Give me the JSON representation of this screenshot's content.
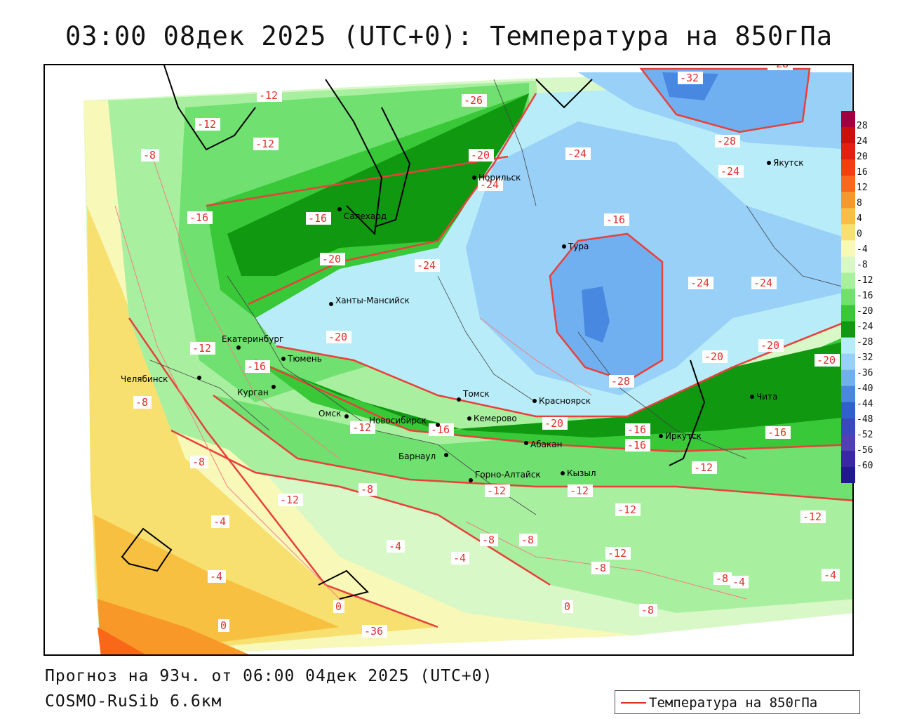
{
  "header": {
    "title": "03:00 08дек 2025 (UTC+0): Температура на 850гПа"
  },
  "footer": {
    "forecast": "Прогноз на 93ч. от 06:00 04дек 2025 (UTC+0)",
    "model": "COSMO-RuSib 6.6км"
  },
  "legend": {
    "label": "Температура на 850гПа",
    "line_color": "#e0302a"
  },
  "colorbar": {
    "ticks": [
      "28",
      "24",
      "20",
      "16",
      "12",
      "8",
      "4",
      "0",
      "-4",
      "-8",
      "-12",
      "-16",
      "-20",
      "-24",
      "-28",
      "-32",
      "-36",
      "-40",
      "-44",
      "-48",
      "-52",
      "-56",
      "-60"
    ],
    "colors": [
      "#a00040",
      "#c81010",
      "#e02010",
      "#f04010",
      "#f86818",
      "#f89828",
      "#f8c040",
      "#f8e070",
      "#f8f8b8",
      "#d8f8c8",
      "#a8f0a0",
      "#70e070",
      "#38c838",
      "#109810",
      "#b8ecf8",
      "#98d0f8",
      "#70b0f0",
      "#4888e0",
      "#3060d0",
      "#3848c0",
      "#5040b8",
      "#3828a8",
      "#201890"
    ]
  },
  "contour_labels": [
    "-32",
    "-28",
    "-28",
    "-24",
    "-24",
    "-24",
    "-24",
    "-24",
    "-24",
    "-20",
    "-20",
    "-20",
    "-20",
    "-20",
    "-20",
    "-20",
    "-16",
    "-16",
    "-16",
    "-16",
    "-16",
    "-16",
    "-16",
    "-16",
    "-12",
    "-12",
    "-12",
    "-12",
    "-12",
    "-12",
    "-12",
    "-12",
    "-12",
    "-12",
    "-12",
    "-12",
    "-8",
    "-8",
    "-8",
    "-8",
    "-8",
    "-8",
    "-8",
    "-8",
    "-8",
    "-4",
    "-4",
    "-4",
    "-4",
    "-4",
    "-4",
    "0",
    "0",
    "0",
    "-36",
    "-26",
    "-28"
  ],
  "cities": [
    {
      "name": "Норильск"
    },
    {
      "name": "Салехард"
    },
    {
      "name": "Якутск"
    },
    {
      "name": "Тура"
    },
    {
      "name": "Ханты-Мансийск"
    },
    {
      "name": "Екатеринбург"
    },
    {
      "name": "Тюмень"
    },
    {
      "name": "Челябинск"
    },
    {
      "name": "Курган"
    },
    {
      "name": "Омск"
    },
    {
      "name": "Новосибирск"
    },
    {
      "name": "Барнаул"
    },
    {
      "name": "Томск"
    },
    {
      "name": "Кемерово"
    },
    {
      "name": "Красноярск"
    },
    {
      "name": "Абакан"
    },
    {
      "name": "Кызыл"
    },
    {
      "name": "Горно-Алтайск"
    },
    {
      "name": "Иркутск"
    },
    {
      "name": "Чита"
    }
  ]
}
